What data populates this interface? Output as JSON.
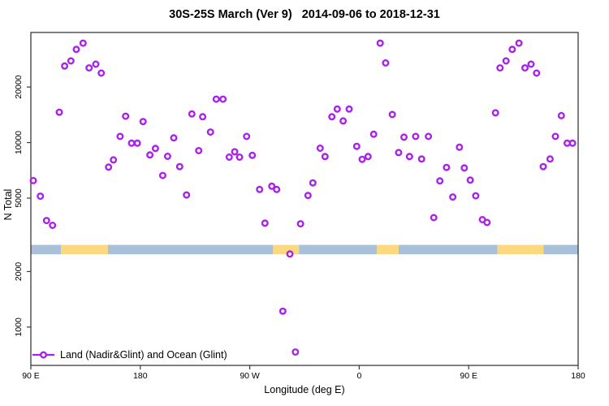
{
  "title": "30S-25S March (Ver 9)   2014-09-06 to 2018-12-31",
  "chart_data": {
    "type": "scatter",
    "title": "30S-25S March (Ver 9)   2014-09-06 to 2018-12-31",
    "xlabel": "Longitude (deg E)",
    "ylabel": "N Total",
    "y_scale": "log",
    "xlim": [
      0,
      450
    ],
    "ylim": [
      620,
      39500
    ],
    "grid": false,
    "legend": {
      "position": "bottom-left-inside",
      "label": "Land (Nadir&Glint) and Ocean (Glint)"
    },
    "colors": {
      "marker": "#a922ea",
      "marker_fill": "#ffffff",
      "ocean_band": "#a9c0da",
      "land_band": "#fcd87f",
      "axis": "#3a3a3a",
      "text": "#000000"
    },
    "xticks": [
      {
        "deg": 0,
        "label": "90 E"
      },
      {
        "deg": 90,
        "label": "180"
      },
      {
        "deg": 180,
        "label": "90 W"
      },
      {
        "deg": 270,
        "label": "0"
      },
      {
        "deg": 360,
        "label": "90 E"
      },
      {
        "deg": 450,
        "label": "180"
      }
    ],
    "yticks": [
      {
        "value": 1000,
        "label": "1000"
      },
      {
        "value": 2000,
        "label": "2000"
      },
      {
        "value": 5000,
        "label": "5000"
      },
      {
        "value": 10000,
        "label": "10000"
      },
      {
        "value": 20000,
        "label": "20000"
      }
    ],
    "surface_band": {
      "value_range": [
        2480,
        2790
      ],
      "segments": [
        {
          "surface": "ocean",
          "from": 0,
          "to": 24.8
        },
        {
          "surface": "land",
          "from": 24.8,
          "to": 63.4
        },
        {
          "surface": "ocean",
          "from": 63.4,
          "to": 199.2
        },
        {
          "surface": "land",
          "from": 199.2,
          "to": 220.5
        },
        {
          "surface": "ocean",
          "from": 220.5,
          "to": 284.6
        },
        {
          "surface": "land",
          "from": 284.6,
          "to": 302.4
        },
        {
          "surface": "ocean",
          "from": 302.4,
          "to": 383.7
        },
        {
          "surface": "land",
          "from": 383.7,
          "to": 421.5
        },
        {
          "surface": "ocean",
          "from": 421.5,
          "to": 450
        }
      ]
    },
    "points": [
      [
        2.0,
        6220
      ],
      [
        7.8,
        5120
      ],
      [
        12.9,
        3780
      ],
      [
        17.8,
        3560
      ],
      [
        23.4,
        14600
      ],
      [
        27.8,
        26000
      ],
      [
        32.9,
        27700
      ],
      [
        37.4,
        32000
      ],
      [
        42.9,
        34600
      ],
      [
        47.9,
        25400
      ],
      [
        53.4,
        26600
      ],
      [
        57.9,
        23800
      ],
      [
        63.9,
        7360
      ],
      [
        67.9,
        8060
      ],
      [
        73.4,
        10800
      ],
      [
        77.9,
        13900
      ],
      [
        82.8,
        9930
      ],
      [
        87.5,
        9930
      ],
      [
        92.3,
        13000
      ],
      [
        97.9,
        8570
      ],
      [
        102.4,
        9290
      ],
      [
        108.4,
        6630
      ],
      [
        112.4,
        8420
      ],
      [
        117.5,
        10600
      ],
      [
        122.4,
        7410
      ],
      [
        128.0,
        5200
      ],
      [
        132.4,
        14300
      ],
      [
        138.0,
        9040
      ],
      [
        141.3,
        13800
      ],
      [
        147.7,
        11400
      ],
      [
        152.4,
        17200
      ],
      [
        158.0,
        17200
      ],
      [
        163.1,
        8340
      ],
      [
        167.6,
        8920
      ],
      [
        171.6,
        8340
      ],
      [
        177.4,
        10800
      ],
      [
        182.1,
        8530
      ],
      [
        188.1,
        5570
      ],
      [
        192.5,
        3660
      ],
      [
        198.1,
        5800
      ],
      [
        202.1,
        5570
      ],
      [
        207.2,
        1220
      ],
      [
        213.0,
        2490
      ],
      [
        217.5,
        733
      ],
      [
        221.7,
        3630
      ],
      [
        227.9,
        5170
      ],
      [
        231.9,
        6050
      ],
      [
        237.9,
        9320
      ],
      [
        241.9,
        8400
      ],
      [
        247.5,
        13800
      ],
      [
        251.9,
        15200
      ],
      [
        256.8,
        13100
      ],
      [
        261.7,
        15200
      ],
      [
        267.9,
        9540
      ],
      [
        272.4,
        8110
      ],
      [
        277.3,
        8400
      ],
      [
        281.9,
        11100
      ],
      [
        287.2,
        34600
      ],
      [
        291.7,
        27000
      ],
      [
        297.2,
        14200
      ],
      [
        302.4,
        8830
      ],
      [
        306.8,
        10700
      ],
      [
        311.3,
        8400
      ],
      [
        316.4,
        10800
      ],
      [
        321.3,
        8150
      ],
      [
        326.9,
        10800
      ],
      [
        331.3,
        3920
      ],
      [
        336.3,
        6200
      ],
      [
        341.8,
        7330
      ],
      [
        346.9,
        5070
      ],
      [
        352.4,
        9440
      ],
      [
        356.4,
        7290
      ],
      [
        361.3,
        6260
      ],
      [
        365.8,
        5150
      ],
      [
        371.3,
        3820
      ],
      [
        375.1,
        3690
      ],
      [
        382.0,
        14500
      ],
      [
        385.8,
        25400
      ],
      [
        390.7,
        27700
      ],
      [
        395.8,
        32000
      ],
      [
        401.3,
        34600
      ],
      [
        406.3,
        25400
      ],
      [
        411.3,
        26600
      ],
      [
        415.8,
        23800
      ],
      [
        421.3,
        7410
      ],
      [
        426.9,
        8150
      ],
      [
        431.3,
        10800
      ],
      [
        436.2,
        14000
      ],
      [
        441.0,
        9930
      ],
      [
        445.4,
        9930
      ]
    ]
  }
}
